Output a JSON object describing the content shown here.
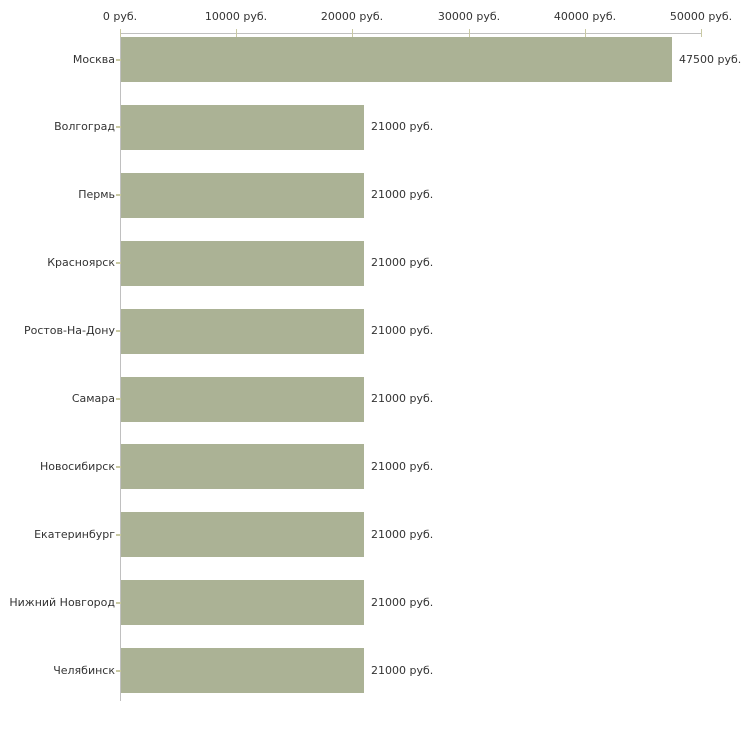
{
  "chart_data": {
    "type": "bar",
    "orientation": "horizontal",
    "title": "",
    "categories": [
      "Москва",
      "Волгоград",
      "Пермь",
      "Красноярск",
      "Ростов-На-Дону",
      "Самара",
      "Новосибирск",
      "Екатеринбург",
      "Нижний Новгород",
      "Челябинск"
    ],
    "values": [
      47500,
      21000,
      21000,
      21000,
      21000,
      21000,
      21000,
      21000,
      21000,
      21000
    ],
    "value_labels": [
      "47500 руб.",
      "21000 руб.",
      "21000 руб.",
      "21000 руб.",
      "21000 руб.",
      "21000 руб.",
      "21000 руб.",
      "21000 руб.",
      "21000 руб.",
      "21000 руб."
    ],
    "unit": "руб.",
    "x_axis": {
      "position": "top",
      "range": [
        0,
        50000
      ],
      "ticks": [
        0,
        10000,
        20000,
        30000,
        40000,
        50000
      ],
      "tick_labels": [
        "0 руб.",
        "10000 руб.",
        "20000 руб.",
        "30000 руб.",
        "40000 руб.",
        "50000 руб."
      ]
    },
    "grid": false,
    "legend": false,
    "colors": {
      "bar": "#abb295",
      "axis_line": "#c0c0c0",
      "tick": "#c9c9a3",
      "text": "#333333",
      "background": "#ffffff"
    }
  }
}
